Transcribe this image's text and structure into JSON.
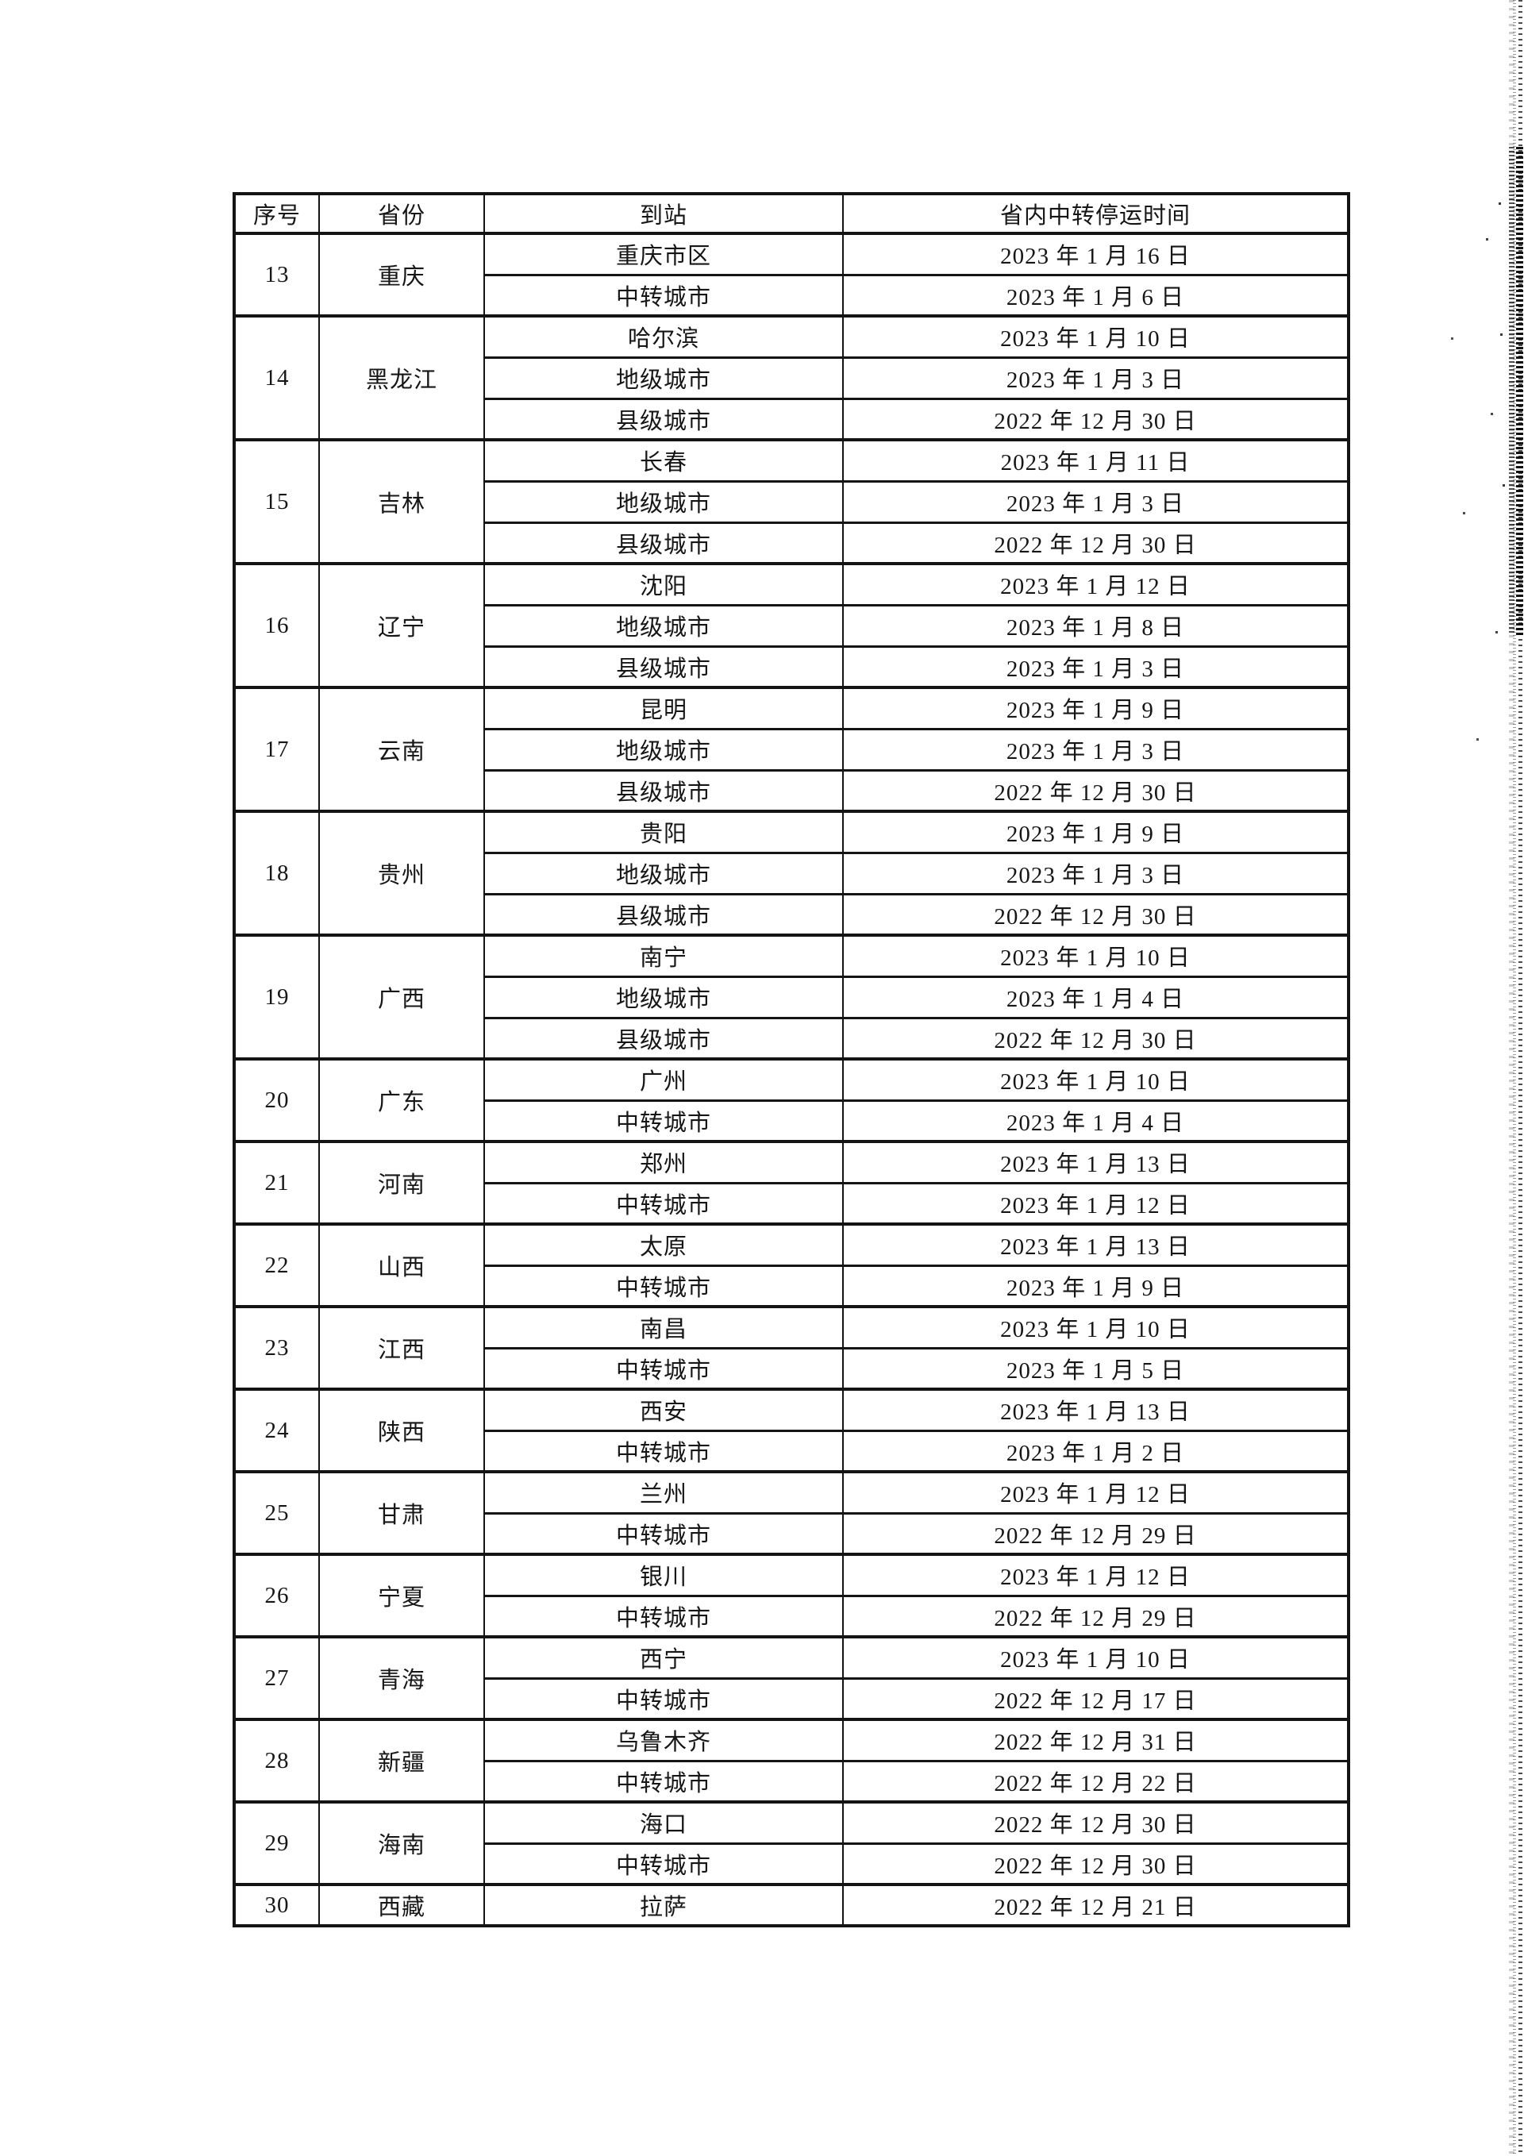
{
  "page": {
    "background": "#ffffff",
    "ink_color": "#161616"
  },
  "table": {
    "headers": [
      "序号",
      "省份",
      "到站",
      "省内中转停运时间"
    ],
    "groups": [
      {
        "no": "13",
        "province": "重庆",
        "rows": [
          [
            "重庆市区",
            "2023 年 1 月 16 日"
          ],
          [
            "中转城市",
            "2023 年 1 月 6 日"
          ]
        ]
      },
      {
        "no": "14",
        "province": "黑龙江",
        "rows": [
          [
            "哈尔滨",
            "2023 年 1 月 10 日"
          ],
          [
            "地级城市",
            "2023 年 1 月 3 日"
          ],
          [
            "县级城市",
            "2022 年 12 月 30 日"
          ]
        ]
      },
      {
        "no": "15",
        "province": "吉林",
        "rows": [
          [
            "长春",
            "2023 年 1 月 11 日"
          ],
          [
            "地级城市",
            "2023 年 1 月 3 日"
          ],
          [
            "县级城市",
            "2022 年 12 月 30 日"
          ]
        ]
      },
      {
        "no": "16",
        "province": "辽宁",
        "rows": [
          [
            "沈阳",
            "2023 年 1 月 12 日"
          ],
          [
            "地级城市",
            "2023 年 1 月 8 日"
          ],
          [
            "县级城市",
            "2023 年 1 月 3 日"
          ]
        ]
      },
      {
        "no": "17",
        "province": "云南",
        "rows": [
          [
            "昆明",
            "2023 年 1 月 9 日"
          ],
          [
            "地级城市",
            "2023 年 1 月 3 日"
          ],
          [
            "县级城市",
            "2022 年 12 月 30 日"
          ]
        ]
      },
      {
        "no": "18",
        "province": "贵州",
        "rows": [
          [
            "贵阳",
            "2023 年 1 月 9 日"
          ],
          [
            "地级城市",
            "2023 年 1 月 3 日"
          ],
          [
            "县级城市",
            "2022 年 12 月 30 日"
          ]
        ]
      },
      {
        "no": "19",
        "province": "广西",
        "rows": [
          [
            "南宁",
            "2023 年 1 月 10 日"
          ],
          [
            "地级城市",
            "2023 年 1 月 4 日"
          ],
          [
            "县级城市",
            "2022 年 12 月 30 日"
          ]
        ]
      },
      {
        "no": "20",
        "province": "广东",
        "rows": [
          [
            "广州",
            "2023 年 1 月 10 日"
          ],
          [
            "中转城市",
            "2023 年 1 月 4 日"
          ]
        ]
      },
      {
        "no": "21",
        "province": "河南",
        "rows": [
          [
            "郑州",
            "2023 年 1 月 13 日"
          ],
          [
            "中转城市",
            "2023 年 1 月 12 日"
          ]
        ]
      },
      {
        "no": "22",
        "province": "山西",
        "rows": [
          [
            "太原",
            "2023 年 1 月 13 日"
          ],
          [
            "中转城市",
            "2023 年 1 月 9 日"
          ]
        ]
      },
      {
        "no": "23",
        "province": "江西",
        "rows": [
          [
            "南昌",
            "2023 年 1 月 10 日"
          ],
          [
            "中转城市",
            "2023 年 1 月 5 日"
          ]
        ]
      },
      {
        "no": "24",
        "province": "陕西",
        "rows": [
          [
            "西安",
            "2023 年 1 月 13 日"
          ],
          [
            "中转城市",
            "2023 年 1 月 2 日"
          ]
        ]
      },
      {
        "no": "25",
        "province": "甘肃",
        "rows": [
          [
            "兰州",
            "2023 年 1 月 12 日"
          ],
          [
            "中转城市",
            "2022 年 12 月 29 日"
          ]
        ]
      },
      {
        "no": "26",
        "province": "宁夏",
        "rows": [
          [
            "银川",
            "2023 年 1 月 12 日"
          ],
          [
            "中转城市",
            "2022 年 12 月 29 日"
          ]
        ]
      },
      {
        "no": "27",
        "province": "青海",
        "rows": [
          [
            "西宁",
            "2023 年 1 月 10 日"
          ],
          [
            "中转城市",
            "2022 年 12 月 17 日"
          ]
        ]
      },
      {
        "no": "28",
        "province": "新疆",
        "rows": [
          [
            "乌鲁木齐",
            "2022 年 12 月 31 日"
          ],
          [
            "中转城市",
            "2022 年 12 月 22 日"
          ]
        ]
      },
      {
        "no": "29",
        "province": "海南",
        "rows": [
          [
            "海口",
            "2022 年 12 月 30 日"
          ],
          [
            "中转城市",
            "2022 年 12 月 30 日"
          ]
        ]
      },
      {
        "no": "30",
        "province": "西藏",
        "rows": [
          [
            "拉萨",
            "2022 年 12 月 21 日"
          ]
        ]
      }
    ]
  }
}
